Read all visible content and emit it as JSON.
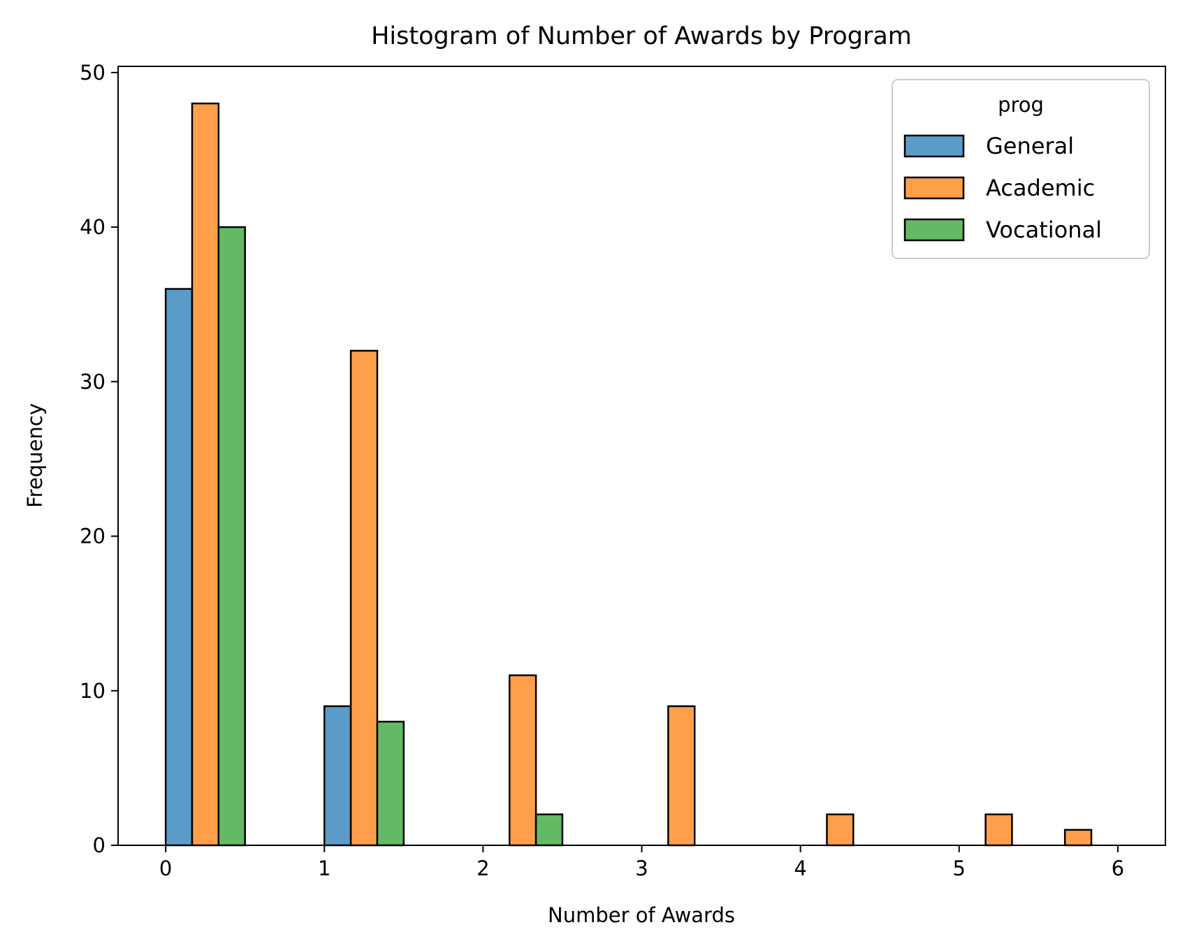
{
  "chart_data": {
    "type": "bar",
    "title": "Histogram of Number of Awards by Program",
    "xlabel": "Number of Awards",
    "ylabel": "Frequency",
    "xlim": [
      -0.3,
      6.3
    ],
    "ylim": [
      0,
      50.4
    ],
    "x_ticks": [
      "0",
      "1",
      "2",
      "3",
      "4",
      "5",
      "6"
    ],
    "y_ticks": [
      "0",
      "10",
      "20",
      "30",
      "40",
      "50"
    ],
    "bin_width": 0.5,
    "bar_fraction_within_bin": 0.3333,
    "bins_start": [
      0,
      1,
      2,
      3,
      4,
      5,
      5.5
    ],
    "legend": {
      "title": "prog",
      "position": "top-right"
    },
    "series": [
      {
        "name": "General",
        "color": "#5a9bc8",
        "values": [
          36,
          9,
          0,
          0,
          0,
          0,
          0
        ]
      },
      {
        "name": "Academic",
        "color": "#ff9f4a",
        "values": [
          48,
          32,
          11,
          9,
          2,
          2,
          1
        ]
      },
      {
        "name": "Vocational",
        "color": "#64b964",
        "values": [
          40,
          8,
          2,
          0,
          0,
          0,
          0
        ]
      }
    ]
  }
}
